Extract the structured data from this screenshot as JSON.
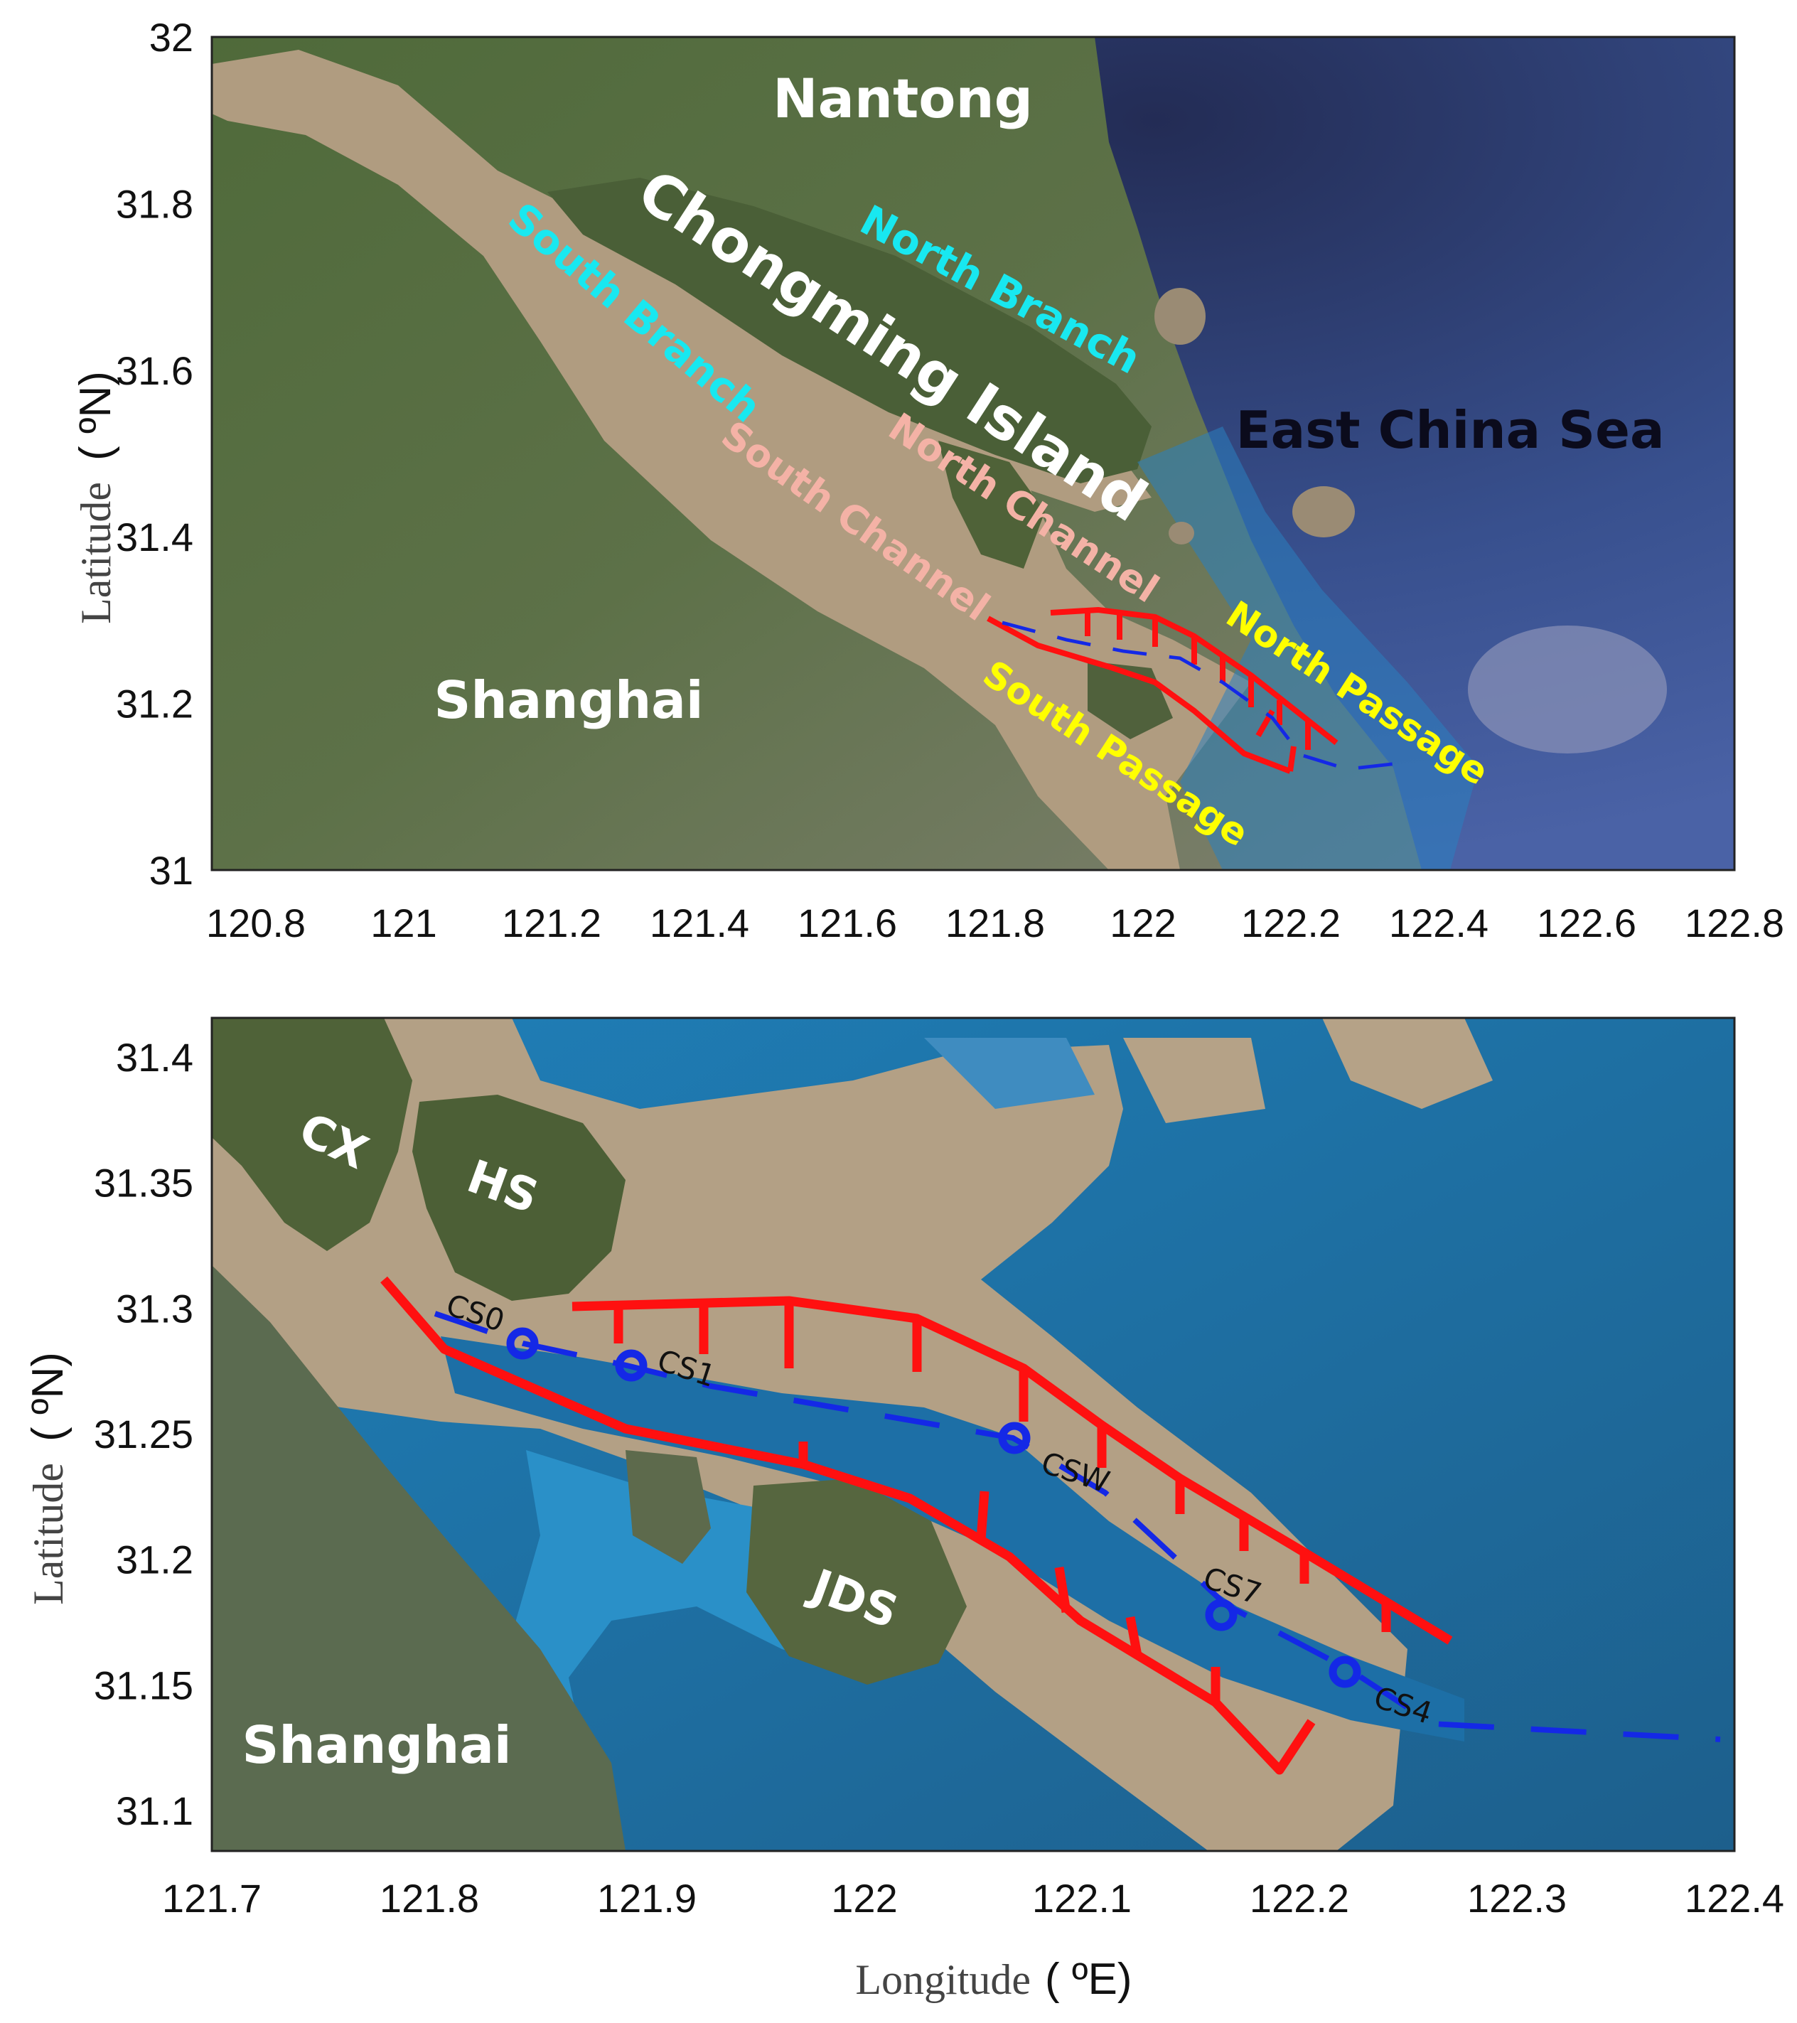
{
  "top_map": {
    "lon_ticks": [
      "120.8",
      "121",
      "121.2",
      "121.4",
      "121.6",
      "121.8",
      "122",
      "122.2",
      "122.4",
      "122.6",
      "122.8"
    ],
    "lat_ticks": [
      "32",
      "31.8",
      "31.6",
      "31.4",
      "31.2",
      "31"
    ],
    "y_label": "Latitude",
    "y_unit": "( ºN)",
    "labels": {
      "nantong": "Nantong",
      "chongming": "Chongming Island",
      "east_china_sea": "East China Sea",
      "shanghai": "Shanghai",
      "north_branch": "North Branch",
      "south_branch": "South Branch",
      "north_channel": "North Channel",
      "south_channel": "South Channel",
      "north_passage": "North Passage",
      "south_passage": "South Passage"
    }
  },
  "bottom_map": {
    "lon_ticks": [
      "121.7",
      "121.8",
      "121.9",
      "122",
      "122.1",
      "122.2",
      "122.3",
      "122.4"
    ],
    "lat_ticks": [
      "31.4",
      "31.35",
      "31.3",
      "31.25",
      "31.2",
      "31.15",
      "31.1"
    ],
    "y_label": "Latitude",
    "y_unit": "( ºN)",
    "x_label": "Longitude",
    "x_unit": "( ºE)",
    "labels": {
      "cx": "CX",
      "hs": "HS",
      "jds": "JDS",
      "shanghai": "Shanghai"
    },
    "stations": [
      "CS0",
      "CS1",
      "CSW",
      "CS7",
      "CS4"
    ]
  },
  "colors": {
    "dike": "#ff1010",
    "channel_line": "#1428e6",
    "station": "#1428e6",
    "channel_label": "#18e8f0",
    "inner_channel_label": "#f4b2a6",
    "passage_label": "#ffff00"
  }
}
